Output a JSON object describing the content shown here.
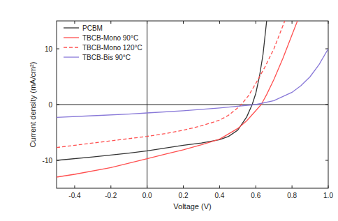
{
  "chart_data": {
    "type": "line",
    "x_label": "Voltage (V)",
    "y_label": "Current density (mA/cm²)",
    "xlim": [
      -0.5,
      1.0
    ],
    "xticks": [
      -0.4,
      -0.2,
      {
        "value": 0,
        "label": "0.0"
      },
      0.2,
      0.4,
      0.6,
      0.8,
      {
        "value": 1,
        "label": "1.0"
      }
    ],
    "ylim": [
      -15,
      15
    ],
    "yticks": [
      -10,
      0,
      10
    ],
    "grid": false,
    "legend": "upper left",
    "series": [
      {
        "name": "PCBM",
        "color": "#333333",
        "line_style": "solid",
        "x": [
          -0.5,
          -0.3,
          -0.1,
          0,
          0.1,
          0.2,
          0.3,
          0.4,
          0.45,
          0.5,
          0.55,
          0.58,
          0.6,
          0.62,
          0.64,
          0.66
        ],
        "values": [
          -10,
          -9.4,
          -8.7,
          -8.3,
          -7.8,
          -7.3,
          -6.9,
          -6.3,
          -5.7,
          -4.6,
          -2.2,
          0,
          2,
          5,
          9,
          15
        ]
      },
      {
        "name": "TBCB-Mono 90°C",
        "color": "#ff5050",
        "line_style": "solid",
        "x": [
          -0.5,
          -0.4,
          -0.2,
          0,
          0.1,
          0.2,
          0.3,
          0.4,
          0.5,
          0.55,
          0.6,
          0.63,
          0.66,
          0.7,
          0.75,
          0.8,
          0.83
        ],
        "values": [
          -13,
          -12.5,
          -11.3,
          -9.7,
          -8.9,
          -8.1,
          -7.2,
          -6.2,
          -4.3,
          -2.9,
          -1.1,
          0,
          1.8,
          4.5,
          8.3,
          12.5,
          15
        ]
      },
      {
        "name": "TBCB-Mono 120°C",
        "color": "#ff5050",
        "line_style": "dashed",
        "x": [
          -0.5,
          -0.3,
          -0.2,
          0,
          0.1,
          0.2,
          0.3,
          0.4,
          0.45,
          0.5,
          0.52,
          0.56,
          0.6,
          0.65,
          0.7,
          0.76
        ],
        "values": [
          -7.7,
          -6.9,
          -6.5,
          -5.7,
          -5.2,
          -4.6,
          -3.8,
          -2.8,
          -1.9,
          -0.6,
          0,
          1.6,
          3.8,
          6.7,
          10,
          15
        ]
      },
      {
        "name": "TBCB-Bis 90°C",
        "color": "#8878d8",
        "line_style": "solid",
        "x": [
          -0.5,
          -0.3,
          -0.1,
          0,
          0.2,
          0.4,
          0.5,
          0.6,
          0.7,
          0.8,
          0.85,
          0.9,
          0.95,
          1.0
        ],
        "values": [
          -2.3,
          -2,
          -1.7,
          -1.5,
          -1.1,
          -0.6,
          -0.3,
          0,
          0.7,
          2.2,
          3.4,
          5,
          7.2,
          10
        ]
      }
    ]
  }
}
